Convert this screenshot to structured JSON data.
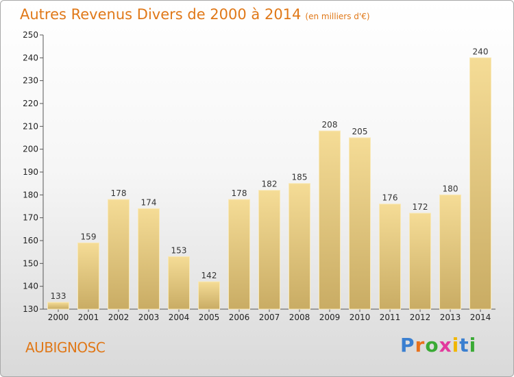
{
  "header": {
    "title": "Autres Revenus Divers de 2000 à 2014",
    "subtitle": "(en milliers d'€)"
  },
  "footer": {
    "place": "AUBIGNOSC",
    "logo": {
      "letters": [
        "P",
        "r",
        "o",
        "x",
        "i",
        "t",
        "i"
      ],
      "colors": [
        "#3a7fd0",
        "#e8711c",
        "#3aaa35",
        "#e23a9d",
        "#f0b600",
        "#3a7fd0",
        "#3aaa35"
      ]
    }
  },
  "chart_data": {
    "type": "bar",
    "title": "Autres Revenus Divers de 2000 à 2014",
    "xlabel": "",
    "ylabel": "",
    "categories": [
      "2000",
      "2001",
      "2002",
      "2003",
      "2004",
      "2005",
      "2006",
      "2007",
      "2008",
      "2009",
      "2010",
      "2011",
      "2012",
      "2013",
      "2014"
    ],
    "values": [
      133,
      159,
      178,
      174,
      153,
      142,
      178,
      182,
      185,
      208,
      205,
      176,
      172,
      180,
      240
    ],
    "ylim": [
      130,
      250
    ],
    "yticks": [
      130,
      140,
      150,
      160,
      170,
      180,
      190,
      200,
      210,
      220,
      230,
      240,
      250
    ],
    "grid": false,
    "bar_color_top": "#f5dc96",
    "bar_color_bottom": "#c9ac64"
  }
}
